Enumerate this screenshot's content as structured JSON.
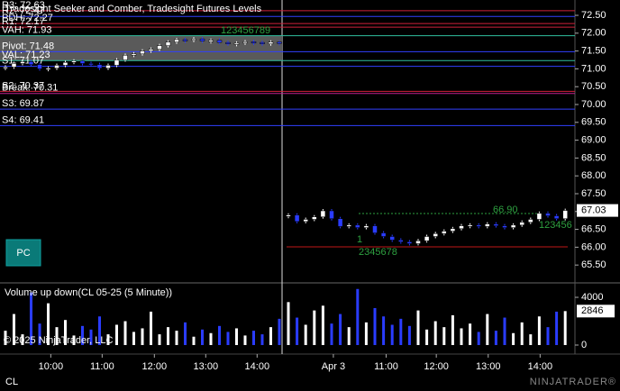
{
  "chart_data": [
    {
      "type": "candlestick",
      "title": "Tradesight Seeker and Comber, Tradesight Futures Levels",
      "values": [
        71.05,
        71.15,
        71.2,
        71.12,
        71.0,
        71.02,
        71.1,
        71.18,
        71.22,
        71.15,
        71.12,
        71.02,
        71.1,
        71.25,
        71.38,
        71.42,
        71.5,
        71.55,
        71.65,
        71.75,
        71.82,
        71.8,
        71.84,
        71.78,
        71.8,
        71.74,
        71.7,
        71.72,
        71.76,
        71.74,
        71.7,
        71.75,
        71.72,
        66.9,
        66.72,
        66.78,
        66.85,
        67.02,
        66.8,
        66.58,
        66.62,
        66.55,
        66.6,
        66.4,
        66.3,
        66.2,
        66.15,
        66.1,
        66.18,
        66.3,
        66.38,
        66.45,
        66.52,
        66.6,
        66.62,
        66.58,
        66.65,
        66.6,
        66.55,
        66.62,
        66.7,
        66.78,
        66.95,
        66.88,
        66.8,
        67.03
      ],
      "up_color": "#ffffff",
      "down_color": "#2a3cff",
      "ylim": [
        65.05,
        72.93
      ],
      "yticks": [
        {
          "value": 65.5,
          "label": "65.50"
        },
        {
          "value": 66,
          "label": "66.00"
        },
        {
          "value": 66.5,
          "label": "66.50"
        },
        {
          "value": 67,
          "label": "67.00"
        },
        {
          "value": 67.5,
          "label": "67.50"
        },
        {
          "value": 68,
          "label": "68.00"
        },
        {
          "value": 68.5,
          "label": "68.50"
        },
        {
          "value": 69,
          "label": "69.00"
        },
        {
          "value": 69.5,
          "label": "69.50"
        },
        {
          "value": 70,
          "label": "70.00"
        },
        {
          "value": 70.5,
          "label": "70.50"
        },
        {
          "value": 71,
          "label": "71.00"
        },
        {
          "value": 71.5,
          "label": "71.50"
        },
        {
          "value": 72,
          "label": "72.00"
        },
        {
          "value": 72.5,
          "label": "72.50"
        }
      ],
      "levels": [
        {
          "label": "R3: 72.63",
          "value": 72.63,
          "color": "#d0203a"
        },
        {
          "label": "R2: 72.47",
          "value": 72.47,
          "color": "#3040ff"
        },
        {
          "label": "PDH: 72.27",
          "value": 72.27,
          "color": "#d0203a"
        },
        {
          "label": "R1: 72.17",
          "value": 72.17,
          "color": "#d0203a"
        },
        {
          "label": "VAH: 71.93",
          "value": 71.93,
          "color": "#30c0a0"
        },
        {
          "label": "Pivot: 71.48",
          "value": 71.48,
          "color": "#3040ff"
        },
        {
          "label": "VAL: 71.23",
          "value": 71.23,
          "color": "#30c0a0"
        },
        {
          "label": "S1: 71.07",
          "value": 71.07,
          "color": "#3040ff"
        },
        {
          "label": "S2: 70.37",
          "value": 70.37,
          "color": "#d0203a"
        },
        {
          "label": "Break: 70.31",
          "value": 70.31,
          "color": "#c02090"
        },
        {
          "label": "S3: 69.87",
          "value": 69.87,
          "color": "#3040ff"
        },
        {
          "label": "S4: 69.41",
          "value": 69.41,
          "color": "#3040ff"
        }
      ],
      "annotations": [
        "123456789",
        "66.90",
        "123456",
        "2345678",
        "1"
      ],
      "annotation_color": "#2ea040"
    },
    {
      "type": "bar",
      "title": "Volume up down(CL 05-25 (5 Minute))",
      "values": [
        1200,
        2600,
        900,
        4400,
        1800,
        3500,
        1500,
        2100,
        800,
        1600,
        1300,
        2400,
        900,
        1700,
        2000,
        1100,
        1400,
        2800,
        900,
        1500,
        1200,
        1900,
        700,
        1300,
        1000,
        1600,
        1100,
        1400,
        800,
        1200,
        900,
        1500,
        2200,
        3600,
        2300,
        1700,
        2900,
        3300,
        1800,
        2600,
        1500,
        4700,
        1900,
        3100,
        2400,
        1700,
        2200,
        1600,
        2900,
        1300,
        2000,
        1500,
        2500,
        1400,
        1800,
        1100,
        2600,
        1200,
        2300,
        1000,
        1900,
        900,
        2400,
        1500,
        2800,
        2846
      ],
      "ylim": [
        -680,
        5060
      ],
      "yticks": [
        0,
        4000
      ],
      "xticks": [
        {
          "value": 5.3,
          "label": "10:00"
        },
        {
          "value": 11.3,
          "label": "11:00"
        },
        {
          "value": 17.4,
          "label": "12:00"
        },
        {
          "value": 23.4,
          "label": "13:00"
        },
        {
          "value": 29.4,
          "label": "14:00"
        },
        {
          "value": 38.2,
          "label": "Apr 3"
        },
        {
          "value": 44.3,
          "label": "11:00"
        },
        {
          "value": 50.1,
          "label": "12:00"
        },
        {
          "value": 56.1,
          "label": "13:00"
        },
        {
          "value": 62.1,
          "label": "14:00"
        }
      ]
    }
  ],
  "ui": {
    "button": "PC",
    "copyright": "© 2025 NinjaTrader, LLC",
    "instrument": "CL",
    "logo": "NINJATRADER®"
  }
}
